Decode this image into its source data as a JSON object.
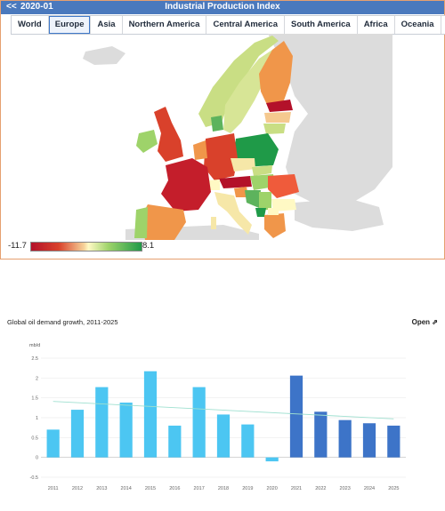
{
  "map_widget": {
    "back_label": "<<",
    "date": "2020-01",
    "title": "Industrial Production Index",
    "tabs": [
      {
        "label": "World",
        "active": false
      },
      {
        "label": "Europe",
        "active": true
      },
      {
        "label": "Asia",
        "active": false
      },
      {
        "label": "Northern America",
        "active": false
      },
      {
        "label": "Central America",
        "active": false
      },
      {
        "label": "South America",
        "active": false
      },
      {
        "label": "Africa",
        "active": false
      },
      {
        "label": "Oceania",
        "active": false
      }
    ],
    "expand_icon": "expand-icon",
    "legend": {
      "min": "-11.7",
      "max": "8.1"
    },
    "colors": {
      "header": "#4a79bd",
      "dark_red": "#b3112a",
      "red": "#d9412b",
      "orange": "#f0964a",
      "pale": "#f6e7a8",
      "light_green": "#c9de84",
      "green": "#1f9a48",
      "land_gray": "#dcdcdc"
    }
  },
  "chart_card": {
    "title": "Global oil demand growth, 2011-2025",
    "open_label": "Open",
    "open_icon": "external-link-icon",
    "chart_data": {
      "type": "bar",
      "ylabel": "mb/d",
      "ylim": [
        -0.5,
        2.5
      ],
      "yticks": [
        "2.5",
        "2",
        "1.5",
        "1",
        "0.5",
        "0",
        "-0.5"
      ],
      "categories": [
        "2011",
        "2012",
        "2013",
        "2014",
        "2015",
        "2016",
        "2017",
        "2018",
        "2019",
        "2020",
        "2021",
        "2022",
        "2023",
        "2024",
        "2025"
      ],
      "values": [
        0.7,
        1.2,
        1.77,
        1.38,
        2.17,
        0.8,
        1.77,
        1.08,
        0.83,
        -0.1,
        2.06,
        1.15,
        0.94,
        0.86,
        0.8
      ],
      "trendline": {
        "start": 1.41,
        "end": 0.97
      },
      "grid": true,
      "colors": {
        "historical": "#4cc6f2",
        "forecast": "#3d74c8",
        "trend": "#9fe0d0"
      }
    }
  }
}
